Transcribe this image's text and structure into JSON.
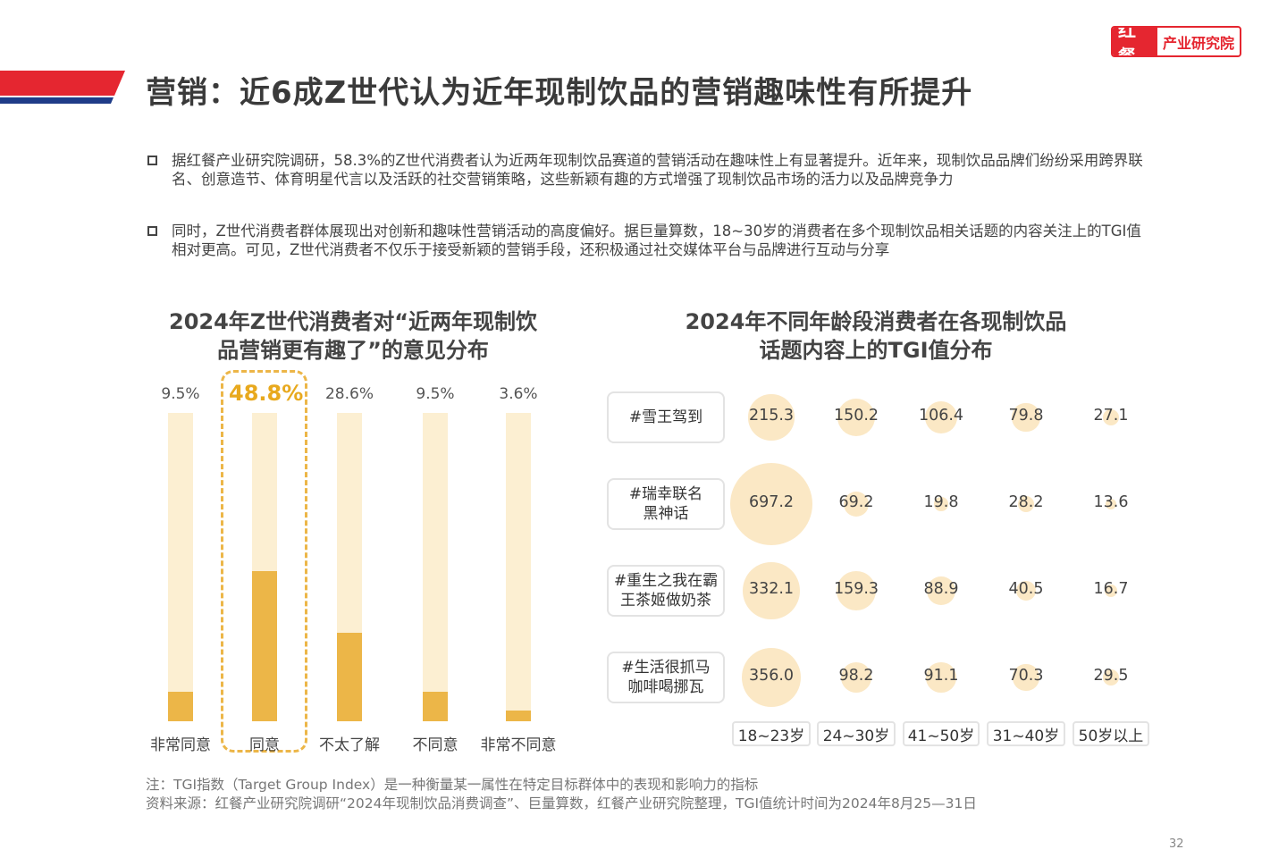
{
  "header": {
    "title": "营销：近6成Z世代认为近年现制饮品的营销趣味性有所提升",
    "logo_left": "红餐",
    "logo_right": "产业研究院",
    "brand_red": "#e52630",
    "brand_navy": "#1f3c88"
  },
  "bullets": [
    "据红餐产业研究院调研，58.3%的Z世代消费者认为近两年现制饮品赛道的营销活动在趣味性上有显著提升。近年来，现制饮品品牌们纷纷采用跨界联名、创意造节、体育明星代言以及活跃的社交营销策略，这些新颖有趣的方式增强了现制饮品市场的活力以及品牌竞争力",
    "同时，Z世代消费者群体展现出对创新和趣味性营销活动的高度偏好。据巨量算数，18~30岁的消费者在多个现制饮品相关话题的内容关注上的TGI值相对更高。可见，Z世代消费者不仅乐于接受新颖的营销手段，还积极通过社交媒体平台与品牌进行互动与分享"
  ],
  "chart_data": [
    {
      "type": "bar",
      "title_line1": "2024年Z世代消费者对“近两年现制饮",
      "title_line2": "品营销更有趣了”的意见分布",
      "categories": [
        "非常同意",
        "同意",
        "不太了解",
        "不同意",
        "非常不同意"
      ],
      "values": [
        9.5,
        48.8,
        28.6,
        9.5,
        3.6
      ],
      "labels": [
        "9.5%",
        "48.8%",
        "28.6%",
        "9.5%",
        "3.6%"
      ],
      "highlight_index": 1,
      "ylim": [
        0,
        100
      ],
      "colors": {
        "fill": "#ecb648",
        "track": "#fcefd2",
        "highlight_text": "#e8a91e"
      }
    },
    {
      "type": "heatmap",
      "title_line1": "2024年不同年龄段消费者在各现制饮品",
      "title_line2": "话题内容上的TGI值分布",
      "columns": [
        "18~23岁",
        "24~30岁",
        "41~50岁",
        "31~40岁",
        "50岁以上"
      ],
      "rows": [
        {
          "topic": [
            "#雪王驾到"
          ],
          "values": [
            215.3,
            150.2,
            106.4,
            79.8,
            27.1
          ],
          "labels": [
            "215.3",
            "150.2",
            "106.4",
            "79.8",
            "27.1"
          ]
        },
        {
          "topic": [
            "#瑞幸联名",
            "黑神话"
          ],
          "values": [
            697.2,
            69.2,
            19.8,
            28.2,
            13.6
          ],
          "labels": [
            "697.2",
            "69.2",
            "19.8",
            "28.2",
            "13.6"
          ]
        },
        {
          "topic": [
            "#重生之我在霸",
            "王茶姬做奶茶"
          ],
          "values": [
            332.1,
            159.3,
            88.9,
            40.5,
            16.7
          ],
          "labels": [
            "332.1",
            "159.3",
            "88.9",
            "40.5",
            "16.7"
          ]
        },
        {
          "topic": [
            "#生活很抓马",
            "咖啡喝挪瓦"
          ],
          "values": [
            356.0,
            98.2,
            91.1,
            70.3,
            29.5
          ],
          "labels": [
            "356.0",
            "98.2",
            "91.1",
            "70.3",
            "29.5"
          ]
        }
      ],
      "encoding": "bubble area proportional to TGI value",
      "colors": {
        "bubble": "#fbe8c5"
      }
    }
  ],
  "notes": [
    "注：TGI指数（Target Group Index）是一种衡量某一属性在特定目标群体中的表现和影响力的指标",
    "资料来源：红餐产业研究院调研“2024年现制饮品消费调查”、巨量算数，红餐产业研究院整理，TGI值统计时间为2024年8月25—31日"
  ],
  "page_number": "32"
}
